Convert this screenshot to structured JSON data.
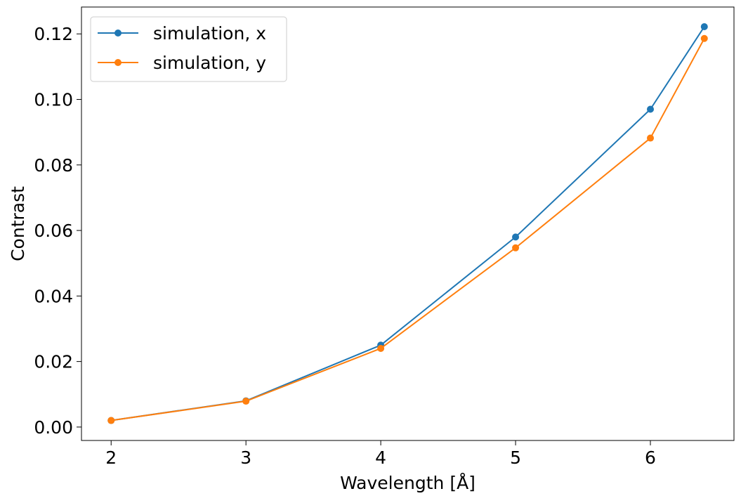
{
  "chart_data": {
    "type": "line",
    "title": "",
    "xlabel": "Wavelength [Å]",
    "ylabel": "Contrast",
    "xlim": [
      1.78,
      6.62
    ],
    "ylim": [
      -0.0041,
      0.1282
    ],
    "xticks": [
      2,
      3,
      4,
      5,
      6
    ],
    "xtick_labels": [
      "2",
      "3",
      "4",
      "5",
      "6"
    ],
    "yticks": [
      0.0,
      0.02,
      0.04,
      0.06,
      0.08,
      0.1,
      0.12
    ],
    "ytick_labels": [
      "0.00",
      "0.02",
      "0.04",
      "0.06",
      "0.08",
      "0.10",
      "0.12"
    ],
    "grid": false,
    "legend_position": "upper-left",
    "series": [
      {
        "name": "simulation, x",
        "color": "#1f77b4",
        "marker": "circle",
        "x": [
          2,
          3,
          4,
          5,
          6,
          6.4
        ],
        "y": [
          0.002,
          0.008,
          0.025,
          0.058,
          0.097,
          0.1222
        ]
      },
      {
        "name": "simulation, y",
        "color": "#ff7f0e",
        "marker": "circle",
        "x": [
          2,
          3,
          4,
          5,
          6,
          6.4
        ],
        "y": [
          0.002,
          0.0079,
          0.024,
          0.0547,
          0.0882,
          0.1186
        ]
      }
    ]
  }
}
